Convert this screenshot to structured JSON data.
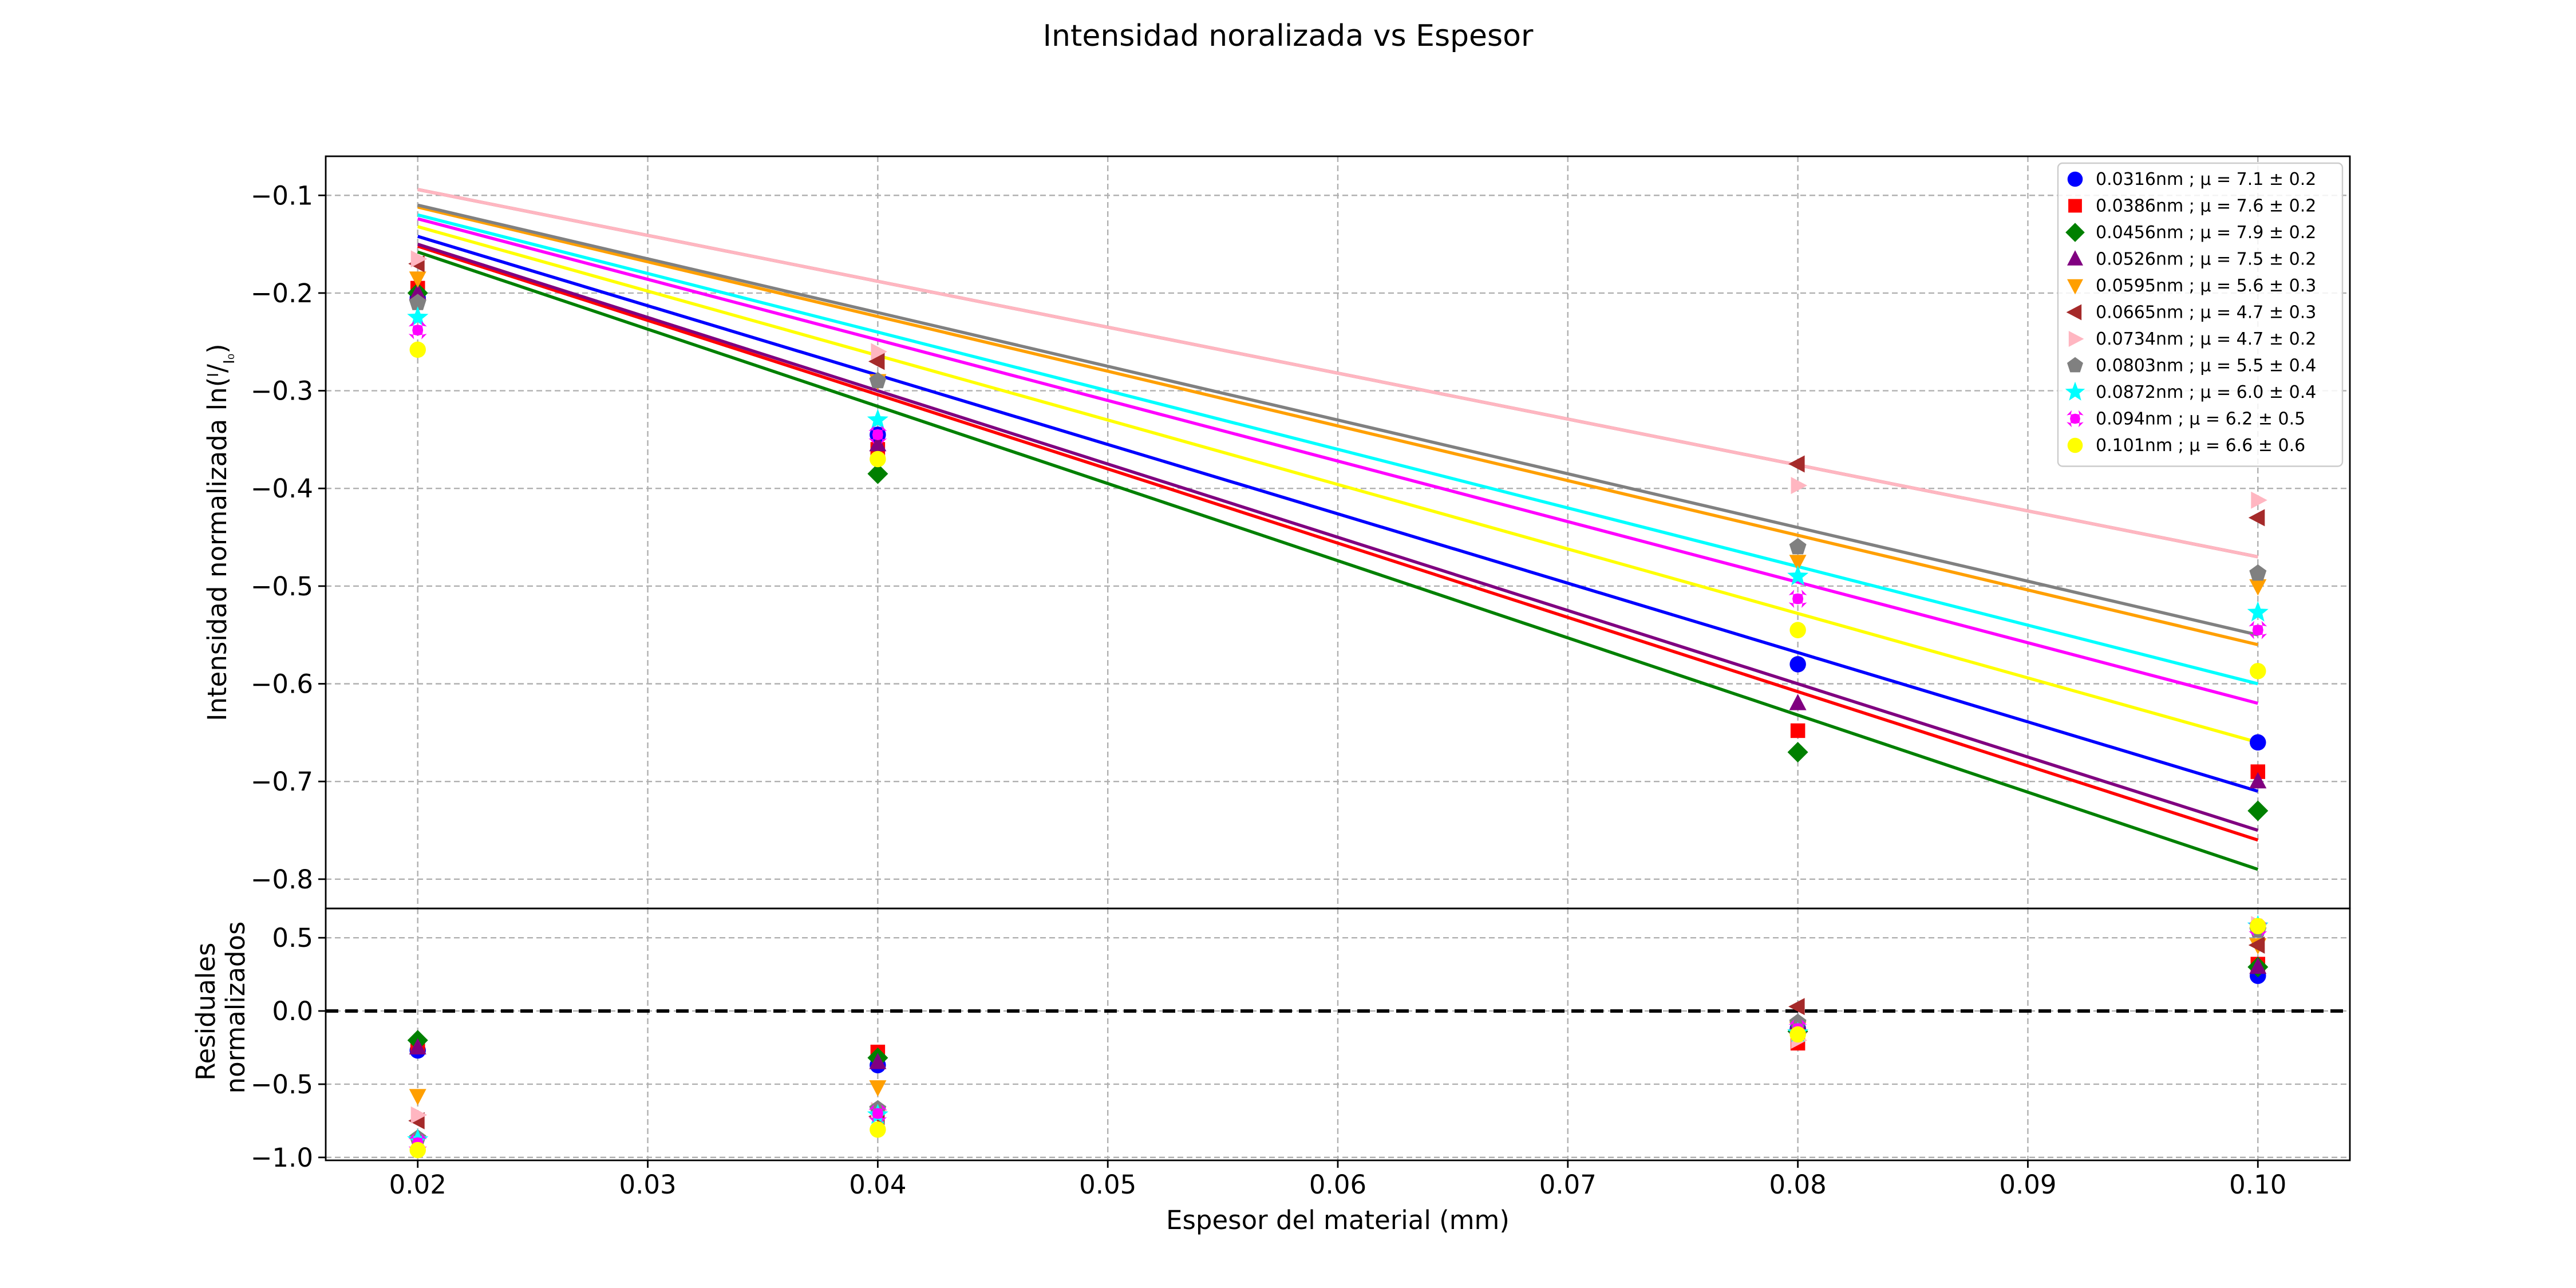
{
  "chart_data": {
    "type": "scatter",
    "title": "Intensidad noralizada vs Espesor",
    "xlabel": "Espesor del material (mm)",
    "top_panel": {
      "ylabel": "Intensidad normalizada ln(I/I₀)",
      "ylabel_main": "Intensidad normalizada ln(",
      "ylabel_num": "I",
      "ylabel_den": "I₀",
      "ylabel_close": ")",
      "ylim": [
        -0.83,
        -0.06
      ],
      "yticks": [
        -0.1,
        -0.2,
        -0.3,
        -0.4,
        -0.5,
        -0.6,
        -0.7,
        -0.8
      ],
      "ytick_labels": [
        "−0.1",
        "−0.2",
        "−0.3",
        "−0.4",
        "−0.5",
        "−0.6",
        "−0.7",
        "−0.8"
      ],
      "grid": true,
      "legend_position": "top-right"
    },
    "bottom_panel": {
      "ylabel_lines": [
        "Residuales",
        "normalizados"
      ],
      "ylim": [
        -1.02,
        0.7
      ],
      "yticks": [
        0.5,
        0.0,
        -0.5,
        -1.0
      ],
      "ytick_labels": [
        "0.5",
        "0.0",
        "−0.5",
        "−1.0"
      ],
      "zero_line": true,
      "grid": true
    },
    "xlim": [
      0.016,
      0.104
    ],
    "xticks": [
      0.02,
      0.03,
      0.04,
      0.05,
      0.06,
      0.07,
      0.08,
      0.09,
      0.1
    ],
    "xtick_labels": [
      "0.02",
      "0.03",
      "0.04",
      "0.05",
      "0.06",
      "0.07",
      "0.08",
      "0.09",
      "0.10"
    ],
    "x": [
      0.02,
      0.04,
      0.08,
      0.1
    ],
    "series": [
      {
        "name": "0.0316nm ; μ = 7.1 ± 0.2",
        "color": "#0000ff",
        "marker": "circle",
        "values": [
          -0.205,
          -0.345,
          -0.58,
          -0.66
        ],
        "fit": [
          -0.142,
          -0.284,
          -0.568,
          -0.71
        ],
        "residuals": [
          -0.27,
          -0.37,
          -0.12,
          0.24
        ]
      },
      {
        "name": "0.0386nm ; μ = 7.6 ± 0.2",
        "color": "#ff0000",
        "marker": "square",
        "values": [
          -0.195,
          -0.36,
          -0.648,
          -0.69
        ],
        "fit": [
          -0.152,
          -0.304,
          -0.608,
          -0.76
        ],
        "residuals": [
          -0.24,
          -0.28,
          -0.22,
          0.32
        ]
      },
      {
        "name": "0.0456nm ; μ = 7.9 ± 0.2",
        "color": "#008000",
        "marker": "diamond",
        "values": [
          -0.2,
          -0.385,
          -0.67,
          -0.73
        ],
        "fit": [
          -0.158,
          -0.316,
          -0.632,
          -0.79
        ],
        "residuals": [
          -0.2,
          -0.32,
          -0.14,
          0.3
        ]
      },
      {
        "name": "0.0526nm ; μ = 7.5 ± 0.2",
        "color": "#800080",
        "marker": "triangle-up",
        "values": [
          -0.2,
          -0.355,
          -0.62,
          -0.7
        ],
        "fit": [
          -0.15,
          -0.3,
          -0.6,
          -0.75
        ],
        "residuals": [
          -0.25,
          -0.35,
          -0.08,
          0.3
        ]
      },
      {
        "name": "0.0595nm ; μ = 5.6 ± 0.3",
        "color": "#ff9f00",
        "marker": "triangle-down",
        "values": [
          -0.185,
          -0.29,
          -0.475,
          -0.5
        ],
        "fit": [
          -0.112,
          -0.224,
          -0.448,
          -0.56
        ],
        "residuals": [
          -0.58,
          -0.52,
          -0.12,
          0.45
        ]
      },
      {
        "name": "0.0665nm ; μ = 4.7 ± 0.3",
        "color": "#a52a2a",
        "marker": "triangle-left",
        "values": [
          -0.17,
          -0.27,
          -0.375,
          -0.43
        ],
        "fit": [
          -0.094,
          -0.188,
          -0.376,
          -0.47
        ],
        "residuals": [
          -0.75,
          -0.72,
          0.03,
          0.45
        ]
      },
      {
        "name": "0.0734nm ; μ = 4.7 ± 0.2",
        "color": "#ffb6c1",
        "marker": "triangle-right",
        "values": [
          -0.165,
          -0.26,
          -0.397,
          -0.412
        ],
        "fit": [
          -0.094,
          -0.188,
          -0.376,
          -0.47
        ],
        "residuals": [
          -0.71,
          -0.68,
          -0.2,
          0.59
        ]
      },
      {
        "name": "0.0803nm ; μ = 5.5 ± 0.4",
        "color": "#808080",
        "marker": "pentagon",
        "values": [
          -0.21,
          -0.29,
          -0.46,
          -0.487
        ],
        "fit": [
          -0.11,
          -0.22,
          -0.44,
          -0.55
        ],
        "residuals": [
          -0.87,
          -0.67,
          -0.08,
          0.55
        ]
      },
      {
        "name": "0.0872nm ; μ = 6.0 ± 0.4",
        "color": "#00ffff",
        "marker": "star",
        "values": [
          -0.225,
          -0.33,
          -0.49,
          -0.527
        ],
        "fit": [
          -0.12,
          -0.24,
          -0.48,
          -0.6
        ],
        "residuals": [
          -0.88,
          -0.71,
          -0.15,
          0.58
        ]
      },
      {
        "name": "0.094nm ; μ = 6.2 ± 0.5",
        "color": "#ff00ff",
        "marker": "x",
        "values": [
          -0.238,
          -0.345,
          -0.513,
          -0.545
        ],
        "fit": [
          -0.124,
          -0.248,
          -0.496,
          -0.62
        ],
        "residuals": [
          -0.9,
          -0.7,
          -0.12,
          0.57
        ]
      },
      {
        "name": "0.101nm ; μ = 6.6 ± 0.6",
        "color": "#ffff00",
        "marker": "circle",
        "values": [
          -0.258,
          -0.37,
          -0.545,
          -0.587
        ],
        "fit": [
          -0.132,
          -0.264,
          -0.528,
          -0.66
        ],
        "residuals": [
          -0.95,
          -0.81,
          -0.16,
          0.58
        ]
      }
    ]
  }
}
